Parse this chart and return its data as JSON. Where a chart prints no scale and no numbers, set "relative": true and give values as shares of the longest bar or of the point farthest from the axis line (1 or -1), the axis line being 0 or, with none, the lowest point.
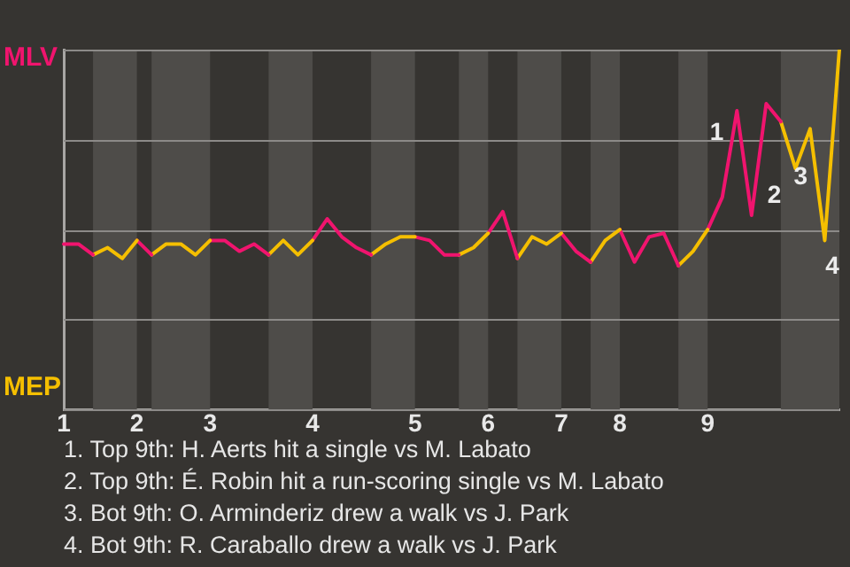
{
  "chart_data": {
    "type": "line",
    "relative": true,
    "categories": [
      "1",
      null,
      null,
      null,
      null,
      "2",
      null,
      null,
      null,
      null,
      "3",
      null,
      null,
      null,
      null,
      null,
      null,
      "4",
      null,
      null,
      null,
      null,
      null,
      null,
      "5",
      null,
      null,
      null,
      null,
      "6",
      null,
      null,
      null,
      null,
      "7",
      null,
      null,
      null,
      "8",
      null,
      null,
      null,
      null,
      null,
      "9",
      null,
      null,
      null,
      null,
      null,
      null,
      null,
      null,
      null
    ],
    "grid": "y",
    "legend": "left",
    "series": [
      {
        "name": "MLV",
        "color": "#f0146e",
        "values": [
          0.46,
          0.46,
          0.43,
          null,
          null,
          null,
          null,
          null,
          null,
          null,
          null,
          null,
          null,
          null,
          null,
          null,
          null,
          null,
          null,
          null,
          null,
          null,
          null,
          null,
          null,
          null,
          null,
          null,
          null,
          null,
          null,
          null,
          null,
          null,
          null,
          null,
          null,
          null,
          null,
          null,
          null,
          null,
          null,
          null,
          null,
          null,
          null,
          null,
          null,
          null,
          null,
          null,
          null,
          null
        ]
      },
      {
        "name": "MEP",
        "color": "#f5bf00",
        "values": [
          null,
          null,
          0.43,
          0.45,
          0.42,
          0.47,
          null,
          null,
          null,
          null,
          null,
          null,
          null,
          null,
          null,
          null,
          null,
          null,
          null,
          null,
          null,
          null,
          null,
          null,
          null,
          null,
          null,
          null,
          null,
          null,
          null,
          null,
          null,
          null,
          null,
          null,
          null,
          null,
          null,
          null,
          null,
          null,
          null,
          null,
          null,
          null,
          null,
          null,
          null,
          null,
          null,
          null,
          null,
          null
        ]
      },
      {
        "color": "#f0146e",
        "values": [
          null,
          null,
          null,
          null,
          null,
          0.47,
          0.43,
          null,
          null,
          null,
          null,
          null,
          null,
          null,
          null,
          null,
          null,
          null,
          null,
          null,
          null,
          null,
          null,
          null,
          null,
          null,
          null,
          null,
          null,
          null,
          null,
          null,
          null,
          null,
          null,
          null,
          null,
          null,
          null,
          null,
          null,
          null,
          null,
          null,
          null,
          null,
          null,
          null,
          null,
          null,
          null,
          null,
          null,
          null
        ]
      },
      {
        "color": "#f5bf00",
        "values": [
          null,
          null,
          null,
          null,
          null,
          null,
          0.43,
          0.46,
          0.46,
          0.43,
          0.47,
          null,
          null,
          null,
          null,
          null,
          null,
          null,
          null,
          null,
          null,
          null,
          null,
          null,
          null,
          null,
          null,
          null,
          null,
          null,
          null,
          null,
          null,
          null,
          null,
          null,
          null,
          null,
          null,
          null,
          null,
          null,
          null,
          null,
          null,
          null,
          null,
          null,
          null,
          null,
          null,
          null,
          null,
          null
        ]
      },
      {
        "color": "#f0146e",
        "values": [
          null,
          null,
          null,
          null,
          null,
          null,
          null,
          null,
          null,
          null,
          0.47,
          0.47,
          0.44,
          0.46,
          0.43,
          null,
          null,
          null,
          null,
          null,
          null,
          null,
          null,
          null,
          null,
          null,
          null,
          null,
          null,
          null,
          null,
          null,
          null,
          null,
          null,
          null,
          null,
          null,
          null,
          null,
          null,
          null,
          null,
          null,
          null,
          null,
          null,
          null,
          null,
          null,
          null,
          null,
          null,
          null
        ]
      },
      {
        "color": "#f5bf00",
        "values": [
          null,
          null,
          null,
          null,
          null,
          null,
          null,
          null,
          null,
          null,
          null,
          null,
          null,
          null,
          0.43,
          0.47,
          0.43,
          0.47,
          null,
          null,
          null,
          null,
          null,
          null,
          null,
          null,
          null,
          null,
          null,
          null,
          null,
          null,
          null,
          null,
          null,
          null,
          null,
          null,
          null,
          null,
          null,
          null,
          null,
          null,
          null,
          null,
          null,
          null,
          null,
          null,
          null,
          null,
          null,
          null
        ]
      },
      {
        "color": "#f0146e",
        "values": [
          null,
          null,
          null,
          null,
          null,
          null,
          null,
          null,
          null,
          null,
          null,
          null,
          null,
          null,
          null,
          null,
          null,
          0.47,
          0.53,
          0.48,
          0.45,
          0.43,
          null,
          null,
          null,
          null,
          null,
          null,
          null,
          null,
          null,
          null,
          null,
          null,
          null,
          null,
          null,
          null,
          null,
          null,
          null,
          null,
          null,
          null,
          null,
          null,
          null,
          null,
          null,
          null,
          null,
          null,
          null,
          null
        ]
      },
      {
        "color": "#f5bf00",
        "values": [
          null,
          null,
          null,
          null,
          null,
          null,
          null,
          null,
          null,
          null,
          null,
          null,
          null,
          null,
          null,
          null,
          null,
          null,
          null,
          null,
          null,
          0.43,
          0.46,
          0.48,
          0.48,
          null,
          null,
          null,
          null,
          null,
          null,
          null,
          null,
          null,
          null,
          null,
          null,
          null,
          null,
          null,
          null,
          null,
          null,
          null,
          null,
          null,
          null,
          null,
          null,
          null,
          null,
          null,
          null,
          null
        ]
      },
      {
        "color": "#f0146e",
        "values": [
          null,
          null,
          null,
          null,
          null,
          null,
          null,
          null,
          null,
          null,
          null,
          null,
          null,
          null,
          null,
          null,
          null,
          null,
          null,
          null,
          null,
          null,
          null,
          null,
          0.48,
          0.47,
          0.43,
          0.43,
          null,
          null,
          null,
          null,
          null,
          null,
          null,
          null,
          null,
          null,
          null,
          null,
          null,
          null,
          null,
          null,
          null,
          null,
          null,
          null,
          null,
          null,
          null,
          null,
          null,
          null
        ]
      },
      {
        "color": "#f5bf00",
        "values": [
          null,
          null,
          null,
          null,
          null,
          null,
          null,
          null,
          null,
          null,
          null,
          null,
          null,
          null,
          null,
          null,
          null,
          null,
          null,
          null,
          null,
          null,
          null,
          null,
          null,
          null,
          null,
          0.43,
          0.45,
          0.49,
          null,
          null,
          null,
          null,
          null,
          null,
          null,
          null,
          null,
          null,
          null,
          null,
          null,
          null,
          null,
          null,
          null,
          null,
          null,
          null,
          null,
          null,
          null,
          null
        ]
      },
      {
        "color": "#f0146e",
        "values": [
          null,
          null,
          null,
          null,
          null,
          null,
          null,
          null,
          null,
          null,
          null,
          null,
          null,
          null,
          null,
          null,
          null,
          null,
          null,
          null,
          null,
          null,
          null,
          null,
          null,
          null,
          null,
          null,
          null,
          0.49,
          0.55,
          0.42,
          null,
          null,
          null,
          null,
          null,
          null,
          null,
          null,
          null,
          null,
          null,
          null,
          null,
          null,
          null,
          null,
          null,
          null,
          null,
          null,
          null,
          null
        ]
      },
      {
        "color": "#f5bf00",
        "values": [
          null,
          null,
          null,
          null,
          null,
          null,
          null,
          null,
          null,
          null,
          null,
          null,
          null,
          null,
          null,
          null,
          null,
          null,
          null,
          null,
          null,
          null,
          null,
          null,
          null,
          null,
          null,
          null,
          null,
          null,
          null,
          0.42,
          0.48,
          0.46,
          0.49,
          null,
          null,
          null,
          null,
          null,
          null,
          null,
          null,
          null,
          null,
          null,
          null,
          null,
          null,
          null,
          null,
          null,
          null,
          null
        ]
      },
      {
        "color": "#f0146e",
        "values": [
          null,
          null,
          null,
          null,
          null,
          null,
          null,
          null,
          null,
          null,
          null,
          null,
          null,
          null,
          null,
          null,
          null,
          null,
          null,
          null,
          null,
          null,
          null,
          null,
          null,
          null,
          null,
          null,
          null,
          null,
          null,
          null,
          null,
          null,
          0.49,
          0.44,
          0.41,
          null,
          null,
          null,
          null,
          null,
          null,
          null,
          null,
          null,
          null,
          null,
          null,
          null,
          null,
          null,
          null,
          null
        ]
      },
      {
        "color": "#f5bf00",
        "values": [
          null,
          null,
          null,
          null,
          null,
          null,
          null,
          null,
          null,
          null,
          null,
          null,
          null,
          null,
          null,
          null,
          null,
          null,
          null,
          null,
          null,
          null,
          null,
          null,
          null,
          null,
          null,
          null,
          null,
          null,
          null,
          null,
          null,
          null,
          null,
          null,
          0.41,
          0.47,
          0.5,
          null,
          null,
          null,
          null,
          null,
          null,
          null,
          null,
          null,
          null,
          null,
          null,
          null,
          null,
          null
        ]
      },
      {
        "color": "#f0146e",
        "values": [
          null,
          null,
          null,
          null,
          null,
          null,
          null,
          null,
          null,
          null,
          null,
          null,
          null,
          null,
          null,
          null,
          null,
          null,
          null,
          null,
          null,
          null,
          null,
          null,
          null,
          null,
          null,
          null,
          null,
          null,
          null,
          null,
          null,
          null,
          null,
          null,
          null,
          null,
          0.5,
          0.41,
          0.48,
          0.49,
          0.4,
          null,
          null,
          null,
          null,
          null,
          null,
          null,
          null,
          null,
          null,
          null
        ]
      },
      {
        "color": "#f5bf00",
        "values": [
          null,
          null,
          null,
          null,
          null,
          null,
          null,
          null,
          null,
          null,
          null,
          null,
          null,
          null,
          null,
          null,
          null,
          null,
          null,
          null,
          null,
          null,
          null,
          null,
          null,
          null,
          null,
          null,
          null,
          null,
          null,
          null,
          null,
          null,
          null,
          null,
          null,
          null,
          null,
          null,
          null,
          null,
          0.4,
          0.44,
          0.5,
          null,
          null,
          null,
          null,
          null,
          null,
          null,
          null,
          null
        ]
      },
      {
        "color": "#f0146e",
        "values": [
          null,
          null,
          null,
          null,
          null,
          null,
          null,
          null,
          null,
          null,
          null,
          null,
          null,
          null,
          null,
          null,
          null,
          null,
          null,
          null,
          null,
          null,
          null,
          null,
          null,
          null,
          null,
          null,
          null,
          null,
          null,
          null,
          null,
          null,
          null,
          null,
          null,
          null,
          null,
          null,
          null,
          null,
          null,
          null,
          0.5,
          0.59,
          0.83,
          0.54,
          0.85,
          0.8,
          null,
          null,
          null,
          null
        ]
      },
      {
        "color": "#f5bf00",
        "values": [
          null,
          null,
          null,
          null,
          null,
          null,
          null,
          null,
          null,
          null,
          null,
          null,
          null,
          null,
          null,
          null,
          null,
          null,
          null,
          null,
          null,
          null,
          null,
          null,
          null,
          null,
          null,
          null,
          null,
          null,
          null,
          null,
          null,
          null,
          null,
          null,
          null,
          null,
          null,
          null,
          null,
          null,
          null,
          null,
          null,
          null,
          null,
          null,
          null,
          0.8,
          0.67,
          0.78,
          0.47,
          1
        ]
      }
    ],
    "annotations": [
      "1",
      "2",
      "3",
      "4",
      "1. Top 9th: H. Aerts hit a single vs M. Labato",
      "2. Top 9th: É. Robin hit a run-scoring single vs M. Labato",
      "3. Bot 9th: O. Arminderiz drew a walk vs J. Park",
      "4. Bot 9th: R. Caraballo drew a walk vs J. Park"
    ]
  }
}
